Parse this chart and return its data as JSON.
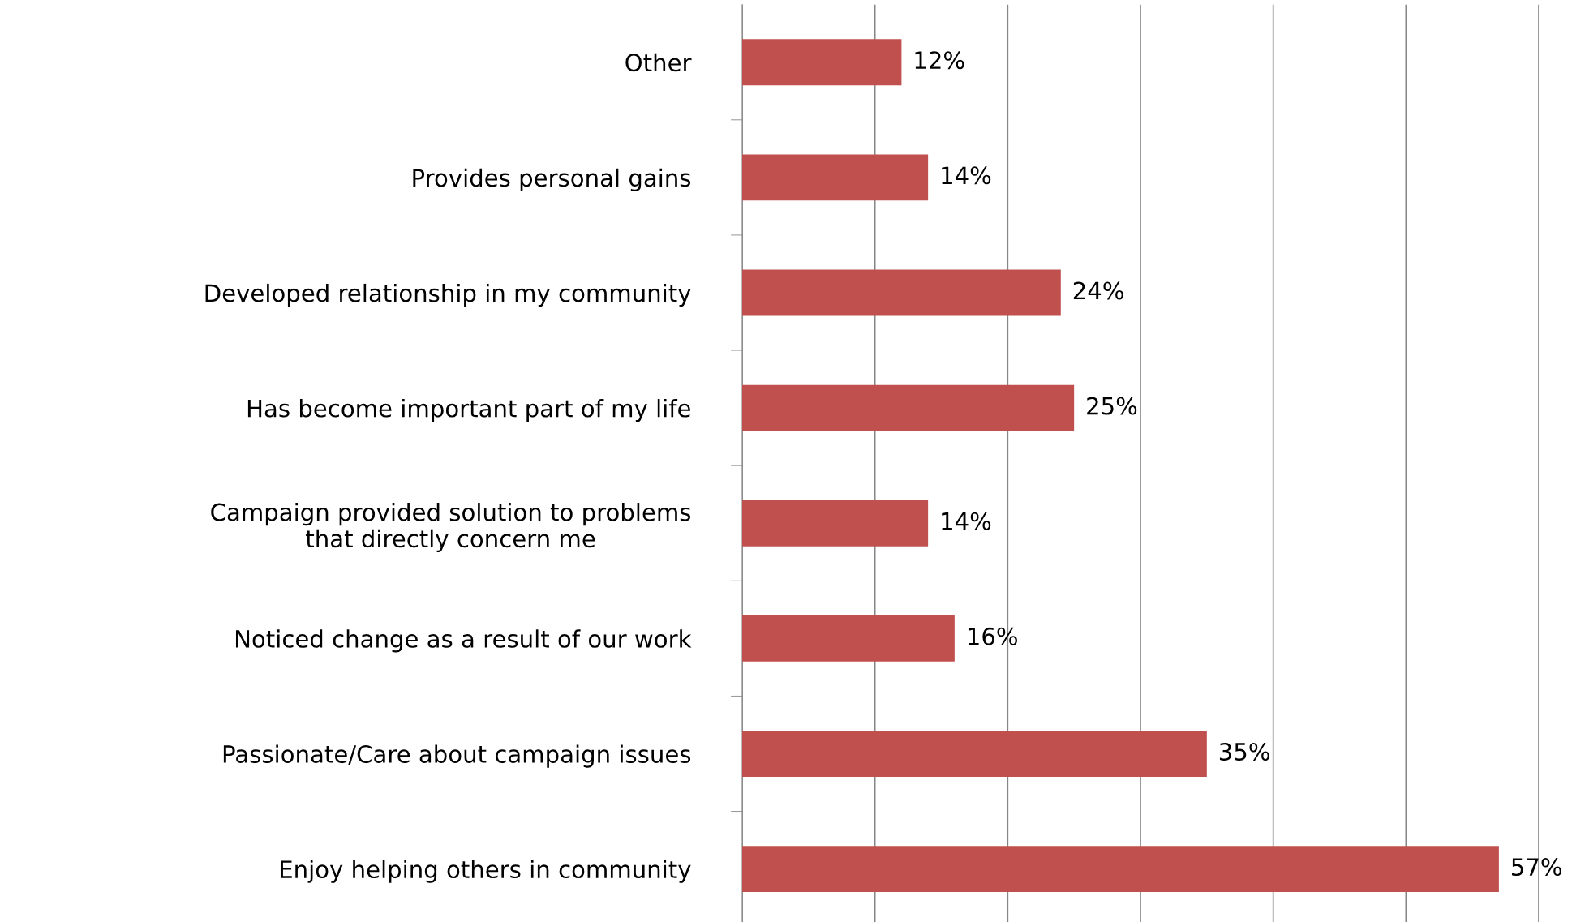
{
  "chart_data": {
    "type": "bar",
    "orientation": "horizontal",
    "categories": [
      "Other",
      "Provides personal gains",
      "Developed relationship in my community",
      "Has become important part of my life",
      "Campaign provided solution to problems\nthat directly concern me",
      "Noticed change as a result of our work",
      "Passionate/Care about campaign issues",
      "Enjoy helping others in community"
    ],
    "values": [
      12,
      14,
      24,
      25,
      14,
      16,
      35,
      57
    ],
    "value_labels": [
      "12%",
      "14%",
      "24%",
      "25%",
      "14%",
      "16%",
      "35%",
      "57%"
    ],
    "color": "#c0504d",
    "xlim": [
      0,
      60
    ],
    "xticks": [
      {
        "value": 0,
        "label": null
      },
      {
        "value": 10,
        "label": null
      },
      {
        "value": 20,
        "label": null
      },
      {
        "value": 30,
        "label": null
      },
      {
        "value": 40,
        "label": null
      },
      {
        "value": 50,
        "label": null
      },
      {
        "value": 60,
        "label": null
      }
    ],
    "tick_labels": "y",
    "grid": "x",
    "legend": false
  }
}
